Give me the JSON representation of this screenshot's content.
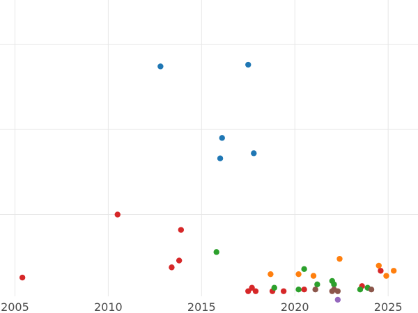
{
  "chart_data": {
    "type": "scatter",
    "title": "",
    "xlabel": "",
    "ylabel": "",
    "xlim": [
      2004.2,
      2026.6
    ],
    "ylim": [
      0,
      17.4
    ],
    "grid": true,
    "x_ticks": [
      2005,
      2010,
      2015,
      2020,
      2025
    ],
    "x_tick_labels": [
      "2005",
      "2010",
      "2015",
      "2020",
      "2025"
    ],
    "y_gridlines": [
      4.8,
      9.8,
      14.8
    ],
    "series": [
      {
        "color": "#1f77b4",
        "points": [
          [
            2012.8,
            13.5
          ],
          [
            2017.5,
            13.6
          ],
          [
            2016.1,
            9.3
          ],
          [
            2017.8,
            8.4
          ],
          [
            2016.0,
            8.1
          ]
        ]
      },
      {
        "color": "#d62728",
        "points": [
          [
            2005.4,
            1.1
          ],
          [
            2010.5,
            4.8
          ],
          [
            2013.9,
            3.9
          ],
          [
            2013.8,
            2.1
          ],
          [
            2013.4,
            1.7
          ],
          [
            2017.5,
            0.3
          ],
          [
            2017.7,
            0.5
          ],
          [
            2017.9,
            0.3
          ],
          [
            2018.8,
            0.3
          ],
          [
            2019.4,
            0.3
          ],
          [
            2020.5,
            0.4
          ],
          [
            2023.6,
            0.6
          ],
          [
            2024.6,
            1.5
          ]
        ]
      },
      {
        "color": "#2ca02c",
        "points": [
          [
            2015.8,
            2.6
          ],
          [
            2018.9,
            0.5
          ],
          [
            2020.2,
            0.4
          ],
          [
            2020.5,
            1.6
          ],
          [
            2021.2,
            0.7
          ],
          [
            2022.0,
            0.9
          ],
          [
            2022.1,
            0.7
          ],
          [
            2023.5,
            0.4
          ],
          [
            2023.9,
            0.5
          ]
        ]
      },
      {
        "color": "#ff7f0e",
        "points": [
          [
            2018.7,
            1.3
          ],
          [
            2020.2,
            1.3
          ],
          [
            2021.0,
            1.2
          ],
          [
            2022.4,
            2.2
          ],
          [
            2024.5,
            1.8
          ],
          [
            2024.9,
            1.2
          ],
          [
            2025.3,
            1.5
          ]
        ]
      },
      {
        "color": "#8c564b",
        "points": [
          [
            2021.1,
            0.4
          ],
          [
            2022.0,
            0.3
          ],
          [
            2022.1,
            0.4
          ],
          [
            2022.3,
            0.3
          ],
          [
            2024.1,
            0.4
          ]
        ]
      },
      {
        "color": "#9467bd",
        "points": [
          [
            2022.3,
            -0.2
          ]
        ]
      }
    ]
  }
}
